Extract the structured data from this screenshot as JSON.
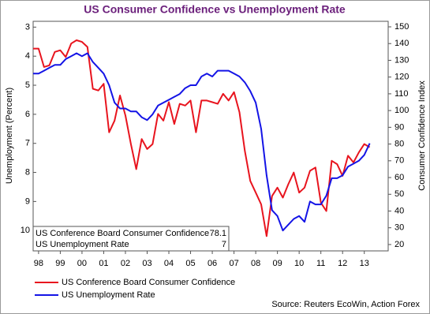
{
  "chart_data": {
    "type": "line",
    "title": "US Consumer Confidence vs Unemployment Rate",
    "ylabel": "Unemployment (Percent)",
    "y2label": "Consumer Confidence Index",
    "source": "Source: Reuters EcoWin, Action Forex",
    "x": [
      1998.25,
      1998.5,
      1998.75,
      1999,
      1999.25,
      1999.5,
      1999.75,
      2000,
      2000.25,
      2000.5,
      2000.75,
      2001,
      2001.25,
      2001.5,
      2001.75,
      2002,
      2002.25,
      2002.5,
      2002.75,
      2003,
      2003.25,
      2003.5,
      2003.75,
      2004,
      2004.25,
      2004.5,
      2004.75,
      2005,
      2005.25,
      2005.5,
      2005.75,
      2006,
      2006.25,
      2006.5,
      2006.75,
      2007,
      2007.25,
      2007.5,
      2007.75,
      2008,
      2008.25,
      2008.5,
      2008.75,
      2009,
      2009.25,
      2009.5,
      2009.75,
      2010,
      2010.25,
      2010.5,
      2010.75,
      2011,
      2011.25,
      2011.5,
      2011.75,
      2012,
      2012.25,
      2012.5,
      2012.75,
      2013,
      2013.25,
      2013.5,
      2013.75
    ],
    "series": [
      {
        "name": "US Conference Board Consumer Confidence",
        "color": "#e8141e",
        "axis": "y2",
        "values": [
          137,
          137,
          126,
          127,
          135,
          136,
          132,
          140,
          142,
          141,
          138,
          113,
          112,
          116,
          87,
          94,
          109,
          97,
          80,
          65,
          83,
          77,
          80,
          98,
          94,
          105,
          92,
          104,
          103,
          106,
          87,
          106,
          106,
          105,
          104,
          110,
          106,
          111,
          99,
          76,
          58,
          51,
          44,
          25,
          49,
          54,
          48,
          56,
          63,
          51,
          54,
          64,
          66,
          45,
          40,
          70,
          68,
          61,
          73,
          69,
          75,
          80,
          78.1
        ]
      },
      {
        "name": "US Unemployment Rate",
        "color": "#1414e6",
        "values": [
          4.6,
          4.6,
          4.5,
          4.4,
          4.3,
          4.3,
          4.1,
          4.0,
          3.9,
          4.0,
          3.9,
          4.2,
          4.4,
          4.6,
          5.0,
          5.6,
          5.8,
          5.8,
          5.9,
          5.9,
          6.1,
          6.2,
          6.0,
          5.7,
          5.6,
          5.5,
          5.4,
          5.3,
          5.1,
          5.0,
          5.0,
          4.7,
          4.6,
          4.7,
          4.5,
          4.5,
          4.5,
          4.6,
          4.7,
          4.9,
          5.2,
          5.6,
          6.5,
          8.1,
          9.3,
          9.5,
          10.0,
          9.8,
          9.6,
          9.5,
          9.7,
          9.0,
          9.1,
          9.1,
          8.8,
          8.2,
          8.2,
          8.1,
          7.8,
          7.7,
          7.6,
          7.4,
          7
        ]
      }
    ],
    "xlim": [
      1998.25,
      2014.6
    ],
    "xticks": [
      {
        "value": 1998.5,
        "label": "98"
      },
      {
        "value": 1999.5,
        "label": "99"
      },
      {
        "value": 2000.5,
        "label": "00"
      },
      {
        "value": 2001.5,
        "label": "01"
      },
      {
        "value": 2002.5,
        "label": "02"
      },
      {
        "value": 2003.5,
        "label": "03"
      },
      {
        "value": 2004.5,
        "label": "04"
      },
      {
        "value": 2005.5,
        "label": "05"
      },
      {
        "value": 2006.5,
        "label": "06"
      },
      {
        "value": 2007.5,
        "label": "07"
      },
      {
        "value": 2008.5,
        "label": "08"
      },
      {
        "value": 2009.5,
        "label": "09"
      },
      {
        "value": 2010.5,
        "label": "10"
      },
      {
        "value": 2011.5,
        "label": "11"
      },
      {
        "value": 2012.5,
        "label": "12"
      },
      {
        "value": 2013.5,
        "label": "13"
      }
    ],
    "ylim": [
      10.7,
      2.8
    ],
    "yticks": [
      3,
      4,
      5,
      6,
      7,
      8,
      9,
      10
    ],
    "y2lim": [
      16.2,
      153.3
    ],
    "y2ticks": [
      20,
      30,
      40,
      50,
      60,
      70,
      80,
      90,
      100,
      110,
      120,
      130,
      140,
      150
    ]
  }
}
